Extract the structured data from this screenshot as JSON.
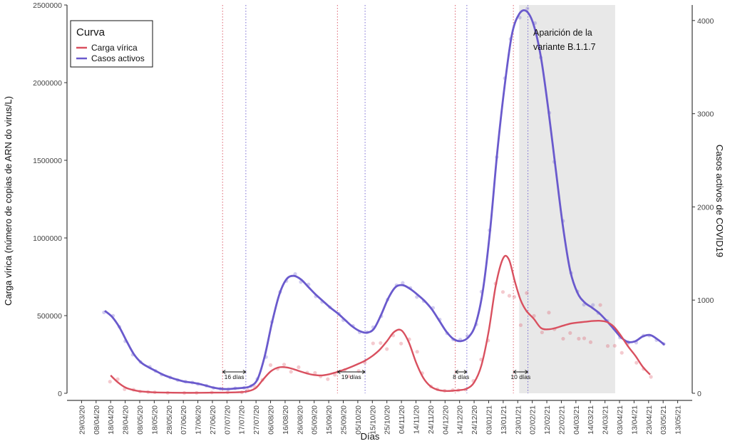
{
  "chart_data": {
    "type": "line",
    "xlabel": "Días",
    "ylabel_left": "Carga vírica (número de copias de ARN do virus/L)",
    "ylabel_right": "Casos activos de COVID19",
    "ylim_left": [
      0,
      2500000
    ],
    "ylim_right": [
      0,
      4166.67
    ],
    "yticks_left": [
      0,
      500000,
      1000000,
      1500000,
      2000000,
      2500000
    ],
    "yticks_right": [
      0,
      1000,
      2000,
      3000,
      4000
    ],
    "grid": false,
    "legend": {
      "title": "Curva",
      "placement": "top-left",
      "entries": [
        "Carga vírica",
        "Casos activos"
      ]
    },
    "x_tick_labels": [
      "29/03/20",
      "08/04/20",
      "18/04/20",
      "28/04/20",
      "08/05/20",
      "18/05/20",
      "28/05/20",
      "07/06/20",
      "17/06/20",
      "27/06/20",
      "07/07/20",
      "17/07/20",
      "27/07/20",
      "06/08/20",
      "16/08/20",
      "26/08/20",
      "05/09/20",
      "15/09/20",
      "25/09/20",
      "05/10/20",
      "15/10/20",
      "25/10/20",
      "04/11/20",
      "14/11/20",
      "24/11/20",
      "04/12/20",
      "14/12/20",
      "24/12/20",
      "03/01/21",
      "13/01/21",
      "23/01/21",
      "02/02/21",
      "12/02/21",
      "22/02/21",
      "04/03/21",
      "14/03/21",
      "24/03/21",
      "03/04/21",
      "13/04/21",
      "23/04/21",
      "03/05/21",
      "13/05/21"
    ],
    "colors": {
      "carga": "#D9505F",
      "casos": "#6A5ACD",
      "shade": "#E8E8E8"
    },
    "series": [
      {
        "name": "Carga vírica",
        "axis": "left",
        "points": [
          [
            "18/04/20",
            115000
          ],
          [
            "23/04/20",
            70000
          ],
          [
            "28/04/20",
            38000
          ],
          [
            "03/05/20",
            22000
          ],
          [
            "08/05/20",
            13000
          ],
          [
            "13/05/20",
            9000
          ],
          [
            "18/05/20",
            6000
          ],
          [
            "28/05/20",
            4000
          ],
          [
            "07/06/20",
            3000
          ],
          [
            "17/06/20",
            3000
          ],
          [
            "27/06/20",
            4000
          ],
          [
            "07/07/20",
            5000
          ],
          [
            "17/07/20",
            8000
          ],
          [
            "22/07/20",
            14000
          ],
          [
            "27/07/20",
            35000
          ],
          [
            "01/08/20",
            90000
          ],
          [
            "06/08/20",
            140000
          ],
          [
            "11/08/20",
            165000
          ],
          [
            "16/08/20",
            168000
          ],
          [
            "21/08/20",
            158000
          ],
          [
            "26/08/20",
            142000
          ],
          [
            "31/08/20",
            128000
          ],
          [
            "05/09/20",
            118000
          ],
          [
            "10/09/20",
            115000
          ],
          [
            "15/09/20",
            122000
          ],
          [
            "20/09/20",
            135000
          ],
          [
            "25/09/20",
            150000
          ],
          [
            "30/09/20",
            168000
          ],
          [
            "05/10/20",
            188000
          ],
          [
            "10/10/20",
            210000
          ],
          [
            "15/10/20",
            240000
          ],
          [
            "20/10/20",
            280000
          ],
          [
            "25/10/20",
            335000
          ],
          [
            "30/10/20",
            395000
          ],
          [
            "04/11/20",
            405000
          ],
          [
            "09/11/20",
            330000
          ],
          [
            "14/11/20",
            200000
          ],
          [
            "19/11/20",
            100000
          ],
          [
            "24/11/20",
            45000
          ],
          [
            "29/11/20",
            22000
          ],
          [
            "04/12/20",
            15000
          ],
          [
            "09/12/20",
            16000
          ],
          [
            "14/12/20",
            20000
          ],
          [
            "19/12/20",
            30000
          ],
          [
            "24/12/20",
            70000
          ],
          [
            "29/12/20",
            180000
          ],
          [
            "03/01/21",
            400000
          ],
          [
            "08/01/21",
            700000
          ],
          [
            "13/01/21",
            870000
          ],
          [
            "17/01/21",
            860000
          ],
          [
            "21/01/21",
            720000
          ],
          [
            "25/01/21",
            600000
          ],
          [
            "29/01/21",
            530000
          ],
          [
            "03/02/21",
            480000
          ],
          [
            "08/02/21",
            420000
          ],
          [
            "13/02/21",
            412000
          ],
          [
            "18/02/21",
            420000
          ],
          [
            "23/02/21",
            435000
          ],
          [
            "28/02/21",
            448000
          ],
          [
            "05/03/21",
            455000
          ],
          [
            "10/03/21",
            460000
          ],
          [
            "15/03/21",
            465000
          ],
          [
            "20/03/21",
            467000
          ],
          [
            "25/03/21",
            460000
          ],
          [
            "30/03/21",
            430000
          ],
          [
            "04/04/21",
            370000
          ],
          [
            "09/04/21",
            300000
          ],
          [
            "14/04/21",
            240000
          ],
          [
            "19/04/21",
            170000
          ],
          [
            "24/04/21",
            120000
          ]
        ]
      },
      {
        "name": "Casos activos",
        "axis": "right",
        "points": [
          [
            "14/04/20",
            885
          ],
          [
            "19/04/20",
            820
          ],
          [
            "24/04/20",
            710
          ],
          [
            "29/04/20",
            560
          ],
          [
            "04/05/20",
            420
          ],
          [
            "09/05/20",
            330
          ],
          [
            "14/05/20",
            280
          ],
          [
            "19/05/20",
            240
          ],
          [
            "24/05/20",
            200
          ],
          [
            "29/05/20",
            170
          ],
          [
            "03/06/20",
            145
          ],
          [
            "08/06/20",
            125
          ],
          [
            "13/06/20",
            115
          ],
          [
            "18/06/20",
            100
          ],
          [
            "23/06/20",
            80
          ],
          [
            "28/06/20",
            60
          ],
          [
            "03/07/20",
            48
          ],
          [
            "08/07/20",
            45
          ],
          [
            "13/07/20",
            52
          ],
          [
            "18/07/20",
            58
          ],
          [
            "23/07/20",
            75
          ],
          [
            "28/07/20",
            150
          ],
          [
            "02/08/20",
            400
          ],
          [
            "07/08/20",
            760
          ],
          [
            "12/08/20",
            1060
          ],
          [
            "17/08/20",
            1225
          ],
          [
            "22/08/20",
            1260
          ],
          [
            "27/08/20",
            1220
          ],
          [
            "01/09/20",
            1140
          ],
          [
            "06/09/20",
            1060
          ],
          [
            "11/09/20",
            990
          ],
          [
            "16/09/20",
            920
          ],
          [
            "21/09/20",
            860
          ],
          [
            "26/09/20",
            790
          ],
          [
            "01/10/20",
            720
          ],
          [
            "06/10/20",
            670
          ],
          [
            "11/10/20",
            650
          ],
          [
            "16/10/20",
            690
          ],
          [
            "21/10/20",
            840
          ],
          [
            "26/10/20",
            1020
          ],
          [
            "31/10/20",
            1140
          ],
          [
            "05/11/20",
            1160
          ],
          [
            "10/11/20",
            1120
          ],
          [
            "15/11/20",
            1060
          ],
          [
            "20/11/20",
            990
          ],
          [
            "25/11/20",
            900
          ],
          [
            "30/11/20",
            780
          ],
          [
            "05/12/20",
            660
          ],
          [
            "10/12/20",
            580
          ],
          [
            "15/12/20",
            560
          ],
          [
            "20/12/20",
            600
          ],
          [
            "25/12/20",
            740
          ],
          [
            "30/12/20",
            1100
          ],
          [
            "04/01/21",
            1750
          ],
          [
            "09/01/21",
            2600
          ],
          [
            "14/01/21",
            3300
          ],
          [
            "19/01/21",
            3850
          ],
          [
            "24/01/21",
            4070
          ],
          [
            "29/01/21",
            4100
          ],
          [
            "03/02/21",
            3950
          ],
          [
            "08/02/21",
            3600
          ],
          [
            "13/02/21",
            3050
          ],
          [
            "18/02/21",
            2420
          ],
          [
            "23/02/21",
            1800
          ],
          [
            "28/02/21",
            1320
          ],
          [
            "05/03/21",
            1080
          ],
          [
            "10/03/21",
            975
          ],
          [
            "15/03/21",
            920
          ],
          [
            "20/03/21",
            860
          ],
          [
            "25/03/21",
            780
          ],
          [
            "30/03/21",
            690
          ],
          [
            "04/04/21",
            600
          ],
          [
            "09/04/21",
            550
          ],
          [
            "14/04/21",
            560
          ],
          [
            "19/04/21",
            610
          ],
          [
            "24/04/21",
            625
          ],
          [
            "29/04/21",
            580
          ],
          [
            "04/05/21",
            520
          ]
        ]
      }
    ],
    "vlines_red": [
      "04/07/20",
      "21/09/20",
      "11/12/20",
      "20/01/21"
    ],
    "vlines_blue": [
      "20/07/20",
      "10/10/20",
      "19/12/20",
      "30/01/21"
    ],
    "shaded_range": [
      "24/01/21",
      "31/03/21"
    ],
    "lag_labels": [
      {
        "text": "16 días",
        "from": "04/07/20",
        "to": "20/07/20"
      },
      {
        "text": "19 días",
        "from": "21/09/20",
        "to": "10/10/20"
      },
      {
        "text": "8 días",
        "from": "11/12/20",
        "to": "19/12/20"
      },
      {
        "text": "10 días",
        "from": "20/01/21",
        "to": "30/01/21"
      }
    ],
    "annotation": "Aparición de la variante B.1.1.7",
    "annotation_lines": [
      "Aparición de la",
      "variante B.1.1.7"
    ]
  }
}
